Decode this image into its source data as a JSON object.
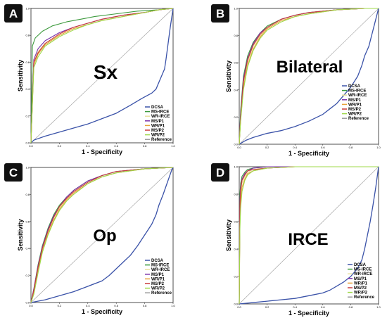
{
  "chart_data": [
    {
      "type": "line",
      "panel": "A",
      "label": "Sx",
      "xlabel": "1 - Specificity",
      "ylabel": "Sensitivity",
      "xlim": [
        0,
        1
      ],
      "ylim": [
        0,
        1
      ],
      "ticks": [
        "0.0",
        "0.2",
        "0.4",
        "0.6",
        "0.8",
        "1.0"
      ],
      "legend": [
        "DCSA",
        "MS-IRCE",
        "WR-IRCE",
        "MS/P1",
        "WR/P1",
        "MS/P2",
        "WR/P2",
        "Reference"
      ],
      "series": [
        {
          "name": "DCSA",
          "color": "#3a52a8",
          "x": [
            0,
            0.02,
            0.1,
            0.2,
            0.3,
            0.4,
            0.5,
            0.6,
            0.7,
            0.78,
            0.85,
            0.88,
            0.9,
            0.92,
            0.94,
            0.95,
            0.96,
            0.97,
            0.98,
            1
          ],
          "y": [
            0,
            0.02,
            0.05,
            0.08,
            0.11,
            0.14,
            0.18,
            0.22,
            0.28,
            0.33,
            0.37,
            0.4,
            0.45,
            0.5,
            0.55,
            0.62,
            0.7,
            0.78,
            0.86,
            1
          ]
        },
        {
          "name": "MS-IRCE",
          "color": "#3d9a3d",
          "x": [
            0,
            0.01,
            0.03,
            0.08,
            0.15,
            0.25,
            0.35,
            0.45,
            0.6,
            0.75,
            0.9,
            1
          ],
          "y": [
            0,
            0.72,
            0.78,
            0.83,
            0.87,
            0.9,
            0.92,
            0.94,
            0.96,
            0.98,
            0.99,
            1
          ]
        },
        {
          "name": "WR-IRCE",
          "color": "#e8e0a0",
          "x": [
            0,
            0.02,
            0.05,
            0.1,
            0.2,
            0.3,
            0.4,
            0.5,
            0.65,
            0.8,
            0.9,
            1
          ],
          "y": [
            0,
            0.6,
            0.68,
            0.74,
            0.8,
            0.85,
            0.88,
            0.91,
            0.94,
            0.97,
            0.99,
            1
          ]
        },
        {
          "name": "MS/P1",
          "color": "#7a2fa8",
          "x": [
            0,
            0.02,
            0.05,
            0.1,
            0.2,
            0.3,
            0.4,
            0.5,
            0.65,
            0.8,
            0.9,
            1
          ],
          "y": [
            0,
            0.62,
            0.7,
            0.76,
            0.82,
            0.86,
            0.89,
            0.92,
            0.95,
            0.97,
            0.99,
            1
          ]
        },
        {
          "name": "WR/P1",
          "color": "#e8a23a",
          "x": [
            0,
            0.02,
            0.05,
            0.1,
            0.2,
            0.3,
            0.4,
            0.5,
            0.65,
            0.8,
            0.9,
            1
          ],
          "y": [
            0,
            0.58,
            0.66,
            0.73,
            0.8,
            0.85,
            0.88,
            0.91,
            0.94,
            0.97,
            0.99,
            1
          ]
        },
        {
          "name": "MS/P2",
          "color": "#c93a3a",
          "x": [
            0,
            0.02,
            0.05,
            0.1,
            0.2,
            0.3,
            0.4,
            0.5,
            0.65,
            0.8,
            0.9,
            1
          ],
          "y": [
            0,
            0.6,
            0.67,
            0.74,
            0.81,
            0.86,
            0.89,
            0.92,
            0.95,
            0.97,
            0.99,
            1
          ]
        },
        {
          "name": "WR/P2",
          "color": "#9fd84a",
          "x": [
            0,
            0.02,
            0.05,
            0.1,
            0.2,
            0.3,
            0.4,
            0.5,
            0.65,
            0.8,
            0.9,
            1
          ],
          "y": [
            0,
            0.56,
            0.64,
            0.72,
            0.79,
            0.84,
            0.88,
            0.91,
            0.94,
            0.97,
            0.99,
            1
          ]
        },
        {
          "name": "Reference",
          "color": "#9a9a9a",
          "x": [
            0,
            1
          ],
          "y": [
            0,
            1
          ]
        }
      ]
    },
    {
      "type": "line",
      "panel": "B",
      "label": "Bilateral",
      "xlabel": "1 - Specificity",
      "ylabel": "Sensitivity",
      "xlim": [
        0,
        1
      ],
      "ylim": [
        0,
        1
      ],
      "ticks": [
        "0.0",
        "0.2",
        "0.4",
        "0.6",
        "0.8",
        "1.0"
      ],
      "legend": [
        "DCSA",
        "MS-IRCE",
        "WR-IRCE",
        "MS/P1",
        "WR/P1",
        "MS/P2",
        "WR/P2",
        "Reference"
      ],
      "series": [
        {
          "name": "DCSA",
          "color": "#3a52a8",
          "x": [
            0,
            0.05,
            0.1,
            0.2,
            0.3,
            0.4,
            0.5,
            0.6,
            0.65,
            0.7,
            0.75,
            0.8,
            0.85,
            0.88,
            0.9,
            0.93,
            0.95,
            0.97,
            0.99,
            1
          ],
          "y": [
            0,
            0.03,
            0.05,
            0.08,
            0.1,
            0.13,
            0.17,
            0.22,
            0.26,
            0.3,
            0.36,
            0.42,
            0.5,
            0.58,
            0.65,
            0.72,
            0.8,
            0.88,
            0.96,
            1
          ]
        },
        {
          "name": "MS-IRCE",
          "color": "#3d9a3d",
          "x": [
            0,
            0.01,
            0.03,
            0.06,
            0.1,
            0.15,
            0.2,
            0.3,
            0.4,
            0.5,
            0.7,
            0.9,
            1
          ],
          "y": [
            0,
            0.25,
            0.5,
            0.65,
            0.75,
            0.82,
            0.87,
            0.92,
            0.95,
            0.97,
            0.99,
            1,
            1
          ]
        },
        {
          "name": "WR-IRCE",
          "color": "#e8e0a0",
          "x": [
            0,
            0.01,
            0.03,
            0.06,
            0.1,
            0.15,
            0.2,
            0.3,
            0.4,
            0.5,
            0.7,
            0.9,
            1
          ],
          "y": [
            0,
            0.2,
            0.45,
            0.6,
            0.72,
            0.8,
            0.85,
            0.91,
            0.94,
            0.96,
            0.99,
            1,
            1
          ]
        },
        {
          "name": "MS/P1",
          "color": "#7a2fa8",
          "x": [
            0,
            0.01,
            0.03,
            0.06,
            0.1,
            0.15,
            0.2,
            0.3,
            0.4,
            0.5,
            0.7,
            0.9,
            1
          ],
          "y": [
            0,
            0.22,
            0.48,
            0.63,
            0.74,
            0.82,
            0.86,
            0.92,
            0.95,
            0.97,
            0.99,
            1,
            1
          ]
        },
        {
          "name": "WR/P1",
          "color": "#e8a23a",
          "x": [
            0,
            0.01,
            0.03,
            0.06,
            0.1,
            0.15,
            0.2,
            0.3,
            0.4,
            0.5,
            0.7,
            0.9,
            1
          ],
          "y": [
            0,
            0.18,
            0.42,
            0.58,
            0.7,
            0.79,
            0.85,
            0.91,
            0.94,
            0.96,
            0.99,
            1,
            1
          ]
        },
        {
          "name": "MS/P2",
          "color": "#c93a3a",
          "x": [
            0,
            0.01,
            0.03,
            0.06,
            0.1,
            0.15,
            0.2,
            0.3,
            0.4,
            0.5,
            0.7,
            0.9,
            1
          ],
          "y": [
            0,
            0.2,
            0.46,
            0.62,
            0.73,
            0.81,
            0.86,
            0.92,
            0.95,
            0.97,
            0.99,
            1,
            1
          ]
        },
        {
          "name": "WR/P2",
          "color": "#9fd84a",
          "x": [
            0,
            0.01,
            0.03,
            0.06,
            0.1,
            0.15,
            0.2,
            0.3,
            0.4,
            0.5,
            0.7,
            0.9,
            1
          ],
          "y": [
            0,
            0.17,
            0.4,
            0.57,
            0.69,
            0.78,
            0.84,
            0.9,
            0.94,
            0.96,
            0.99,
            1,
            1
          ]
        },
        {
          "name": "Reference",
          "color": "#9a9a9a",
          "x": [
            0,
            1
          ],
          "y": [
            0,
            1
          ]
        }
      ]
    },
    {
      "type": "line",
      "panel": "C",
      "label": "Op",
      "xlabel": "1 - Specificity",
      "ylabel": "Sensitivity",
      "xlim": [
        0,
        1
      ],
      "ylim": [
        0,
        1
      ],
      "ticks": [
        "0.0",
        "0.2",
        "0.4",
        "0.6",
        "0.8",
        "1.0"
      ],
      "legend": [
        "DCSA",
        "MS-IRCE",
        "WR-IRCE",
        "MS/P1",
        "WR/P1",
        "MS/P2",
        "WR/P2",
        "Reference"
      ],
      "series": [
        {
          "name": "DCSA",
          "color": "#3a52a8",
          "x": [
            0,
            0.1,
            0.2,
            0.3,
            0.4,
            0.5,
            0.55,
            0.6,
            0.65,
            0.7,
            0.75,
            0.8,
            0.85,
            0.88,
            0.9,
            0.93,
            0.95,
            0.97,
            0.99,
            1
          ],
          "y": [
            0,
            0.02,
            0.05,
            0.08,
            0.12,
            0.16,
            0.2,
            0.25,
            0.3,
            0.35,
            0.42,
            0.5,
            0.58,
            0.65,
            0.72,
            0.8,
            0.86,
            0.92,
            0.98,
            1
          ]
        },
        {
          "name": "MS-IRCE",
          "color": "#3d9a3d",
          "x": [
            0,
            0.02,
            0.05,
            0.08,
            0.12,
            0.16,
            0.2,
            0.25,
            0.3,
            0.4,
            0.5,
            0.6,
            0.8,
            1
          ],
          "y": [
            0,
            0.1,
            0.28,
            0.42,
            0.55,
            0.65,
            0.72,
            0.78,
            0.83,
            0.9,
            0.94,
            0.97,
            0.99,
            1
          ]
        },
        {
          "name": "WR-IRCE",
          "color": "#e8e0a0",
          "x": [
            0,
            0.02,
            0.05,
            0.08,
            0.12,
            0.16,
            0.2,
            0.25,
            0.3,
            0.4,
            0.5,
            0.6,
            0.8,
            1
          ],
          "y": [
            0,
            0.08,
            0.25,
            0.4,
            0.53,
            0.63,
            0.7,
            0.77,
            0.82,
            0.89,
            0.93,
            0.96,
            0.99,
            1
          ]
        },
        {
          "name": "MS/P1",
          "color": "#7a2fa8",
          "x": [
            0,
            0.02,
            0.05,
            0.08,
            0.12,
            0.16,
            0.2,
            0.25,
            0.3,
            0.4,
            0.5,
            0.6,
            0.8,
            1
          ],
          "y": [
            0,
            0.1,
            0.27,
            0.41,
            0.54,
            0.64,
            0.71,
            0.78,
            0.83,
            0.9,
            0.94,
            0.97,
            0.99,
            1
          ]
        },
        {
          "name": "WR/P1",
          "color": "#e8a23a",
          "x": [
            0,
            0.02,
            0.05,
            0.08,
            0.12,
            0.16,
            0.2,
            0.25,
            0.3,
            0.4,
            0.5,
            0.6,
            0.8,
            1
          ],
          "y": [
            0,
            0.07,
            0.23,
            0.38,
            0.51,
            0.61,
            0.69,
            0.76,
            0.81,
            0.88,
            0.93,
            0.96,
            0.99,
            1
          ]
        },
        {
          "name": "MS/P2",
          "color": "#c93a3a",
          "x": [
            0,
            0.02,
            0.05,
            0.08,
            0.12,
            0.16,
            0.2,
            0.25,
            0.3,
            0.4,
            0.5,
            0.6,
            0.8,
            1
          ],
          "y": [
            0,
            0.09,
            0.26,
            0.4,
            0.53,
            0.63,
            0.71,
            0.77,
            0.82,
            0.89,
            0.94,
            0.97,
            0.99,
            1
          ]
        },
        {
          "name": "WR/P2",
          "color": "#9fd84a",
          "x": [
            0,
            0.02,
            0.05,
            0.08,
            0.12,
            0.16,
            0.2,
            0.25,
            0.3,
            0.4,
            0.5,
            0.6,
            0.8,
            1
          ],
          "y": [
            0,
            0.06,
            0.22,
            0.37,
            0.5,
            0.6,
            0.68,
            0.75,
            0.8,
            0.88,
            0.93,
            0.96,
            0.99,
            1
          ]
        },
        {
          "name": "Reference",
          "color": "#9a9a9a",
          "x": [
            0,
            1
          ],
          "y": [
            0,
            1
          ]
        }
      ]
    },
    {
      "type": "line",
      "panel": "D",
      "label": "IRCE",
      "xlabel": "1 - Specificity",
      "ylabel": "Sensitivity",
      "xlim": [
        0,
        1
      ],
      "ylim": [
        0,
        1
      ],
      "ticks": [
        "0.0",
        "0.2",
        "0.4",
        "0.6",
        "0.8",
        "1.0"
      ],
      "legend": [
        "DCSA",
        "MS-IRCE",
        "WR-IRCE",
        "MS/P1",
        "WR/P1",
        "MS/P2",
        "WR/P2",
        "Reference"
      ],
      "series": [
        {
          "name": "DCSA",
          "color": "#3a52a8",
          "x": [
            0,
            0.1,
            0.2,
            0.3,
            0.4,
            0.5,
            0.6,
            0.65,
            0.7,
            0.75,
            0.8,
            0.85,
            0.88,
            0.9,
            0.92,
            0.94,
            0.96,
            0.98,
            1
          ],
          "y": [
            0,
            0.01,
            0.02,
            0.03,
            0.04,
            0.06,
            0.08,
            0.1,
            0.13,
            0.16,
            0.2,
            0.26,
            0.32,
            0.4,
            0.5,
            0.6,
            0.72,
            0.85,
            1
          ]
        },
        {
          "name": "MS-IRCE",
          "color": "#3d9a3d",
          "x": [
            0,
            0.005,
            0.01,
            0.02,
            0.04,
            0.06,
            0.1,
            0.2,
            0.4,
            0.6,
            1
          ],
          "y": [
            0,
            0.8,
            0.88,
            0.93,
            0.96,
            0.98,
            0.99,
            1,
            1,
            1,
            1
          ]
        },
        {
          "name": "WR-IRCE",
          "color": "#e8e0a0",
          "x": [
            0,
            0.005,
            0.01,
            0.02,
            0.04,
            0.06,
            0.1,
            0.2,
            0.4,
            0.6,
            1
          ],
          "y": [
            0,
            0.7,
            0.8,
            0.88,
            0.93,
            0.96,
            0.98,
            0.99,
            1,
            1,
            1
          ]
        },
        {
          "name": "MS/P1",
          "color": "#7a2fa8",
          "x": [
            0,
            0.005,
            0.01,
            0.02,
            0.04,
            0.06,
            0.1,
            0.2,
            0.4,
            0.6,
            1
          ],
          "y": [
            0,
            0.75,
            0.85,
            0.91,
            0.95,
            0.97,
            0.99,
            1,
            1,
            1,
            1
          ]
        },
        {
          "name": "WR/P1",
          "color": "#e8a23a",
          "x": [
            0,
            0.005,
            0.01,
            0.02,
            0.04,
            0.06,
            0.1,
            0.2,
            0.4,
            0.6,
            1
          ],
          "y": [
            0,
            0.6,
            0.75,
            0.85,
            0.91,
            0.95,
            0.97,
            0.99,
            1,
            1,
            1
          ]
        },
        {
          "name": "MS/P2",
          "color": "#c93a3a",
          "x": [
            0,
            0.005,
            0.01,
            0.02,
            0.04,
            0.06,
            0.1,
            0.2,
            0.4,
            0.6,
            1
          ],
          "y": [
            0,
            0.72,
            0.83,
            0.9,
            0.94,
            0.97,
            0.98,
            0.99,
            1,
            1,
            1
          ]
        },
        {
          "name": "WR/P2",
          "color": "#9fd84a",
          "x": [
            0,
            0.005,
            0.01,
            0.02,
            0.04,
            0.06,
            0.1,
            0.2,
            0.4,
            0.6,
            1
          ],
          "y": [
            0,
            0.55,
            0.7,
            0.82,
            0.9,
            0.94,
            0.97,
            0.99,
            1,
            1,
            1
          ]
        },
        {
          "name": "Reference",
          "color": "#9a9a9a",
          "x": [
            0,
            1
          ],
          "y": [
            0,
            1
          ]
        }
      ]
    }
  ]
}
